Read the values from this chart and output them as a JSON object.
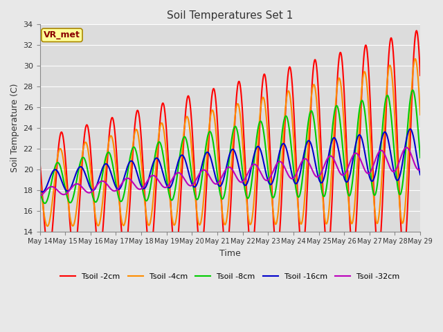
{
  "title": "Soil Temperatures Set 1",
  "xlabel": "Time",
  "ylabel": "Soil Temperature (C)",
  "ylim": [
    14,
    34
  ],
  "yticks": [
    14,
    16,
    18,
    20,
    22,
    24,
    26,
    28,
    30,
    32,
    34
  ],
  "annotation_text": "VR_met",
  "annotation_color": "#8B0000",
  "annotation_bg": "#FFFF99",
  "bg_color": "#E8E8E8",
  "plot_bg": "#DCDCDC",
  "series": [
    {
      "label": "Tsoil -2cm",
      "color": "#FF0000"
    },
    {
      "label": "Tsoil -4cm",
      "color": "#FF8C00"
    },
    {
      "label": "Tsoil -8cm",
      "color": "#00CC00"
    },
    {
      "label": "Tsoil -16cm",
      "color": "#0000CC"
    },
    {
      "label": "Tsoil -32cm",
      "color": "#BB00BB"
    }
  ],
  "x_tick_labels": [
    "May 14",
    "May 15",
    "May 16",
    "May 17",
    "May 18",
    "May 19",
    "May 20",
    "May 21",
    "May 22",
    "May 23",
    "May 24",
    "May 25",
    "May 26",
    "May 27",
    "May 28",
    "May 29"
  ],
  "grid_color": "#FFFFFF",
  "line_width": 1.5,
  "figsize": [
    6.4,
    4.8
  ],
  "dpi": 100
}
